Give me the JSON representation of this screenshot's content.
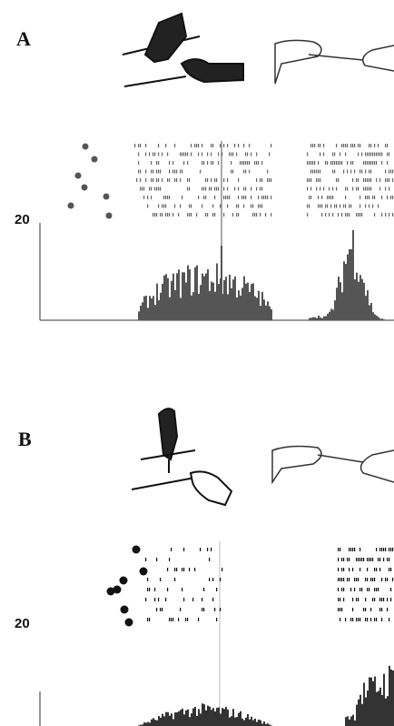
{
  "panels": [
    {
      "label": "A",
      "scale_label": "20"
    },
    {
      "label": "B",
      "scale_label": "20"
    }
  ]
}
